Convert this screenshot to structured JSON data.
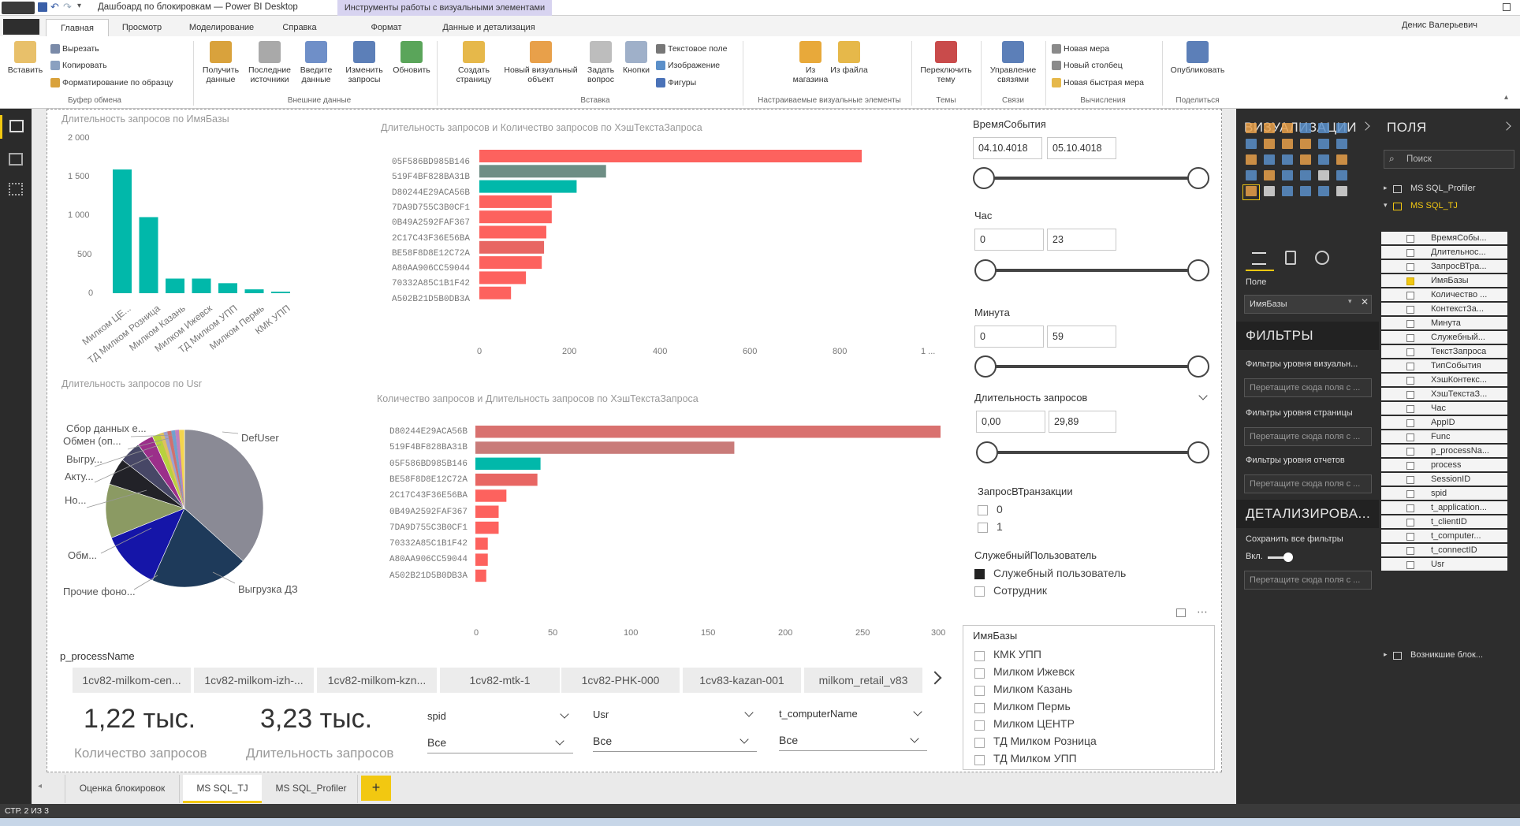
{
  "window": {
    "title": "Дашбоард по блокировкам — Power BI Desktop",
    "context_tab": "Инструменты работы с визуальными элементами",
    "user": "Денис Валерьевич"
  },
  "ribbon_tabs": [
    "Главная",
    "Просмотр",
    "Моделирование",
    "Справка",
    "Формат",
    "Данные и детализация"
  ],
  "ribbon": {
    "paste": "Вставить",
    "cut": "Вырезать",
    "copy": "Копировать",
    "format_painter": "Форматирование по образцу",
    "clipboard_group": "Буфер обмена",
    "get_data": "Получить данные",
    "recent_sources": "Последние источники",
    "enter_data": "Введите данные",
    "edit_queries": "Изменить запросы",
    "refresh": "Обновить",
    "external_group": "Внешние данные",
    "new_page": "Создать страницу",
    "new_visual": "Новый визуальный объект",
    "ask_question": "Задать вопрос",
    "buttons": "Кнопки",
    "text_box": "Текстовое поле",
    "image": "Изображение",
    "shapes": "Фигуры",
    "insert_group": "Вставка",
    "from_store": "Из магазина",
    "from_file": "Из файла",
    "custom_visuals_group": "Настраиваемые визуальные элементы",
    "switch_theme": "Переключить тему",
    "themes_group": "Темы",
    "manage_relationships": "Управление связями",
    "relationships_group": "Связи",
    "new_measure": "Новая мера",
    "new_column": "Новый столбец",
    "new_quick_measure": "Новая быстрая мера",
    "calculations_group": "Вычисления",
    "publish": "Опубликовать",
    "share_group": "Поделиться"
  },
  "chart1": {
    "title": "Длительность запросов по ИмяБазы",
    "yticks": [
      "2 000",
      "1 500",
      "1 000",
      "500",
      "0"
    ],
    "categories": [
      "Милком ЦЕ...",
      "ТД Милком Розница",
      "Милком Казань",
      "Милком Ижевск",
      "ТД Милком УПП",
      "Милком Пермь",
      "КМК УПП"
    ]
  },
  "chart2": {
    "title": "Длительность запросов и Количество запросов по ХэшТекстаЗапроса",
    "categories": [
      "05F586BD985B146",
      "519F4BF828BA31B",
      "D80244E29ACA56B",
      "7DA9D755C3B0CF1",
      "0B49A2592FAF367",
      "2C17C43F36E56BA",
      "BE58F8D8E12C72A",
      "A80AA906CC59044",
      "70332A85C1B1F42",
      "A502B21D5B0DB3A"
    ],
    "xticks": [
      "0",
      "200",
      "400",
      "600",
      "800",
      "1 ..."
    ]
  },
  "chart3": {
    "title": "Количество запросов и Длительность запросов по ХэшТекстаЗапроса",
    "categories": [
      "D80244E29ACA56B",
      "519F4BF828BA31B",
      "05F586BD985B146",
      "BE58F8D8E12C72A",
      "2C17C43F36E56BA",
      "0B49A2592FAF367",
      "7DA9D755C3B0CF1",
      "70332A85C1B1F42",
      "A80AA906CC59044",
      "A502B21D5B0DB3A"
    ],
    "xticks": [
      "0",
      "50",
      "100",
      "150",
      "200",
      "250",
      "300"
    ]
  },
  "chart4": {
    "title": "Длительность запросов по Usr",
    "labels": [
      "Сбор данных е...",
      "Обмен (оп...",
      "Выгру...",
      "Акту...",
      "Но...",
      "Обм...",
      "Прочие фоно...",
      "Выгрузка ДЗ",
      "DefUser"
    ]
  },
  "chart_data": [
    {
      "type": "bar",
      "title": "Длительность запросов по ИмяБазы",
      "categories": [
        "Милком ЦЕ...",
        "ТД Милком Розница",
        "Милком Казань",
        "Милком Ижевск",
        "ТД Милком УПП",
        "Милком Пермь",
        "КМК УПП"
      ],
      "values": [
        1610,
        990,
        190,
        190,
        130,
        50,
        20
      ],
      "ylim": [
        0,
        2000
      ],
      "color": "#01b8aa"
    },
    {
      "type": "bar",
      "orientation": "horizontal",
      "title": "Длительность запросов и Количество запросов по ХэшТекстаЗапроса",
      "categories": [
        "05F586BD985B146",
        "519F4BF828BA31B",
        "D80244E29ACA56B",
        "7DA9D755C3B0CF1",
        "0B49A2592FAF367",
        "2C17C43F36E56BA",
        "BE58F8D8E12C72A",
        "A80AA906CC59044",
        "70332A85C1B1F42",
        "A502B21D5B0DB3A"
      ],
      "values": [
        845,
        280,
        215,
        160,
        160,
        148,
        143,
        138,
        103,
        70
      ],
      "colors": [
        "#fd625e",
        "#6e8e85",
        "#01b8aa",
        "#fd625e",
        "#fd625e",
        "#fd625e",
        "#e86663",
        "#fd625e",
        "#fd625e",
        "#fd625e"
      ],
      "xlim": [
        0,
        1000
      ]
    },
    {
      "type": "bar",
      "orientation": "horizontal",
      "title": "Количество запросов и Длительность запросов по ХэшТекстаЗапроса",
      "categories": [
        "D80244E29ACA56B",
        "519F4BF828BA31B",
        "05F586BD985B146",
        "BE58F8D8E12C72A",
        "2C17C43F36E56BA",
        "0B49A2592FAF367",
        "7DA9D755C3B0CF1",
        "70332A85C1B1F42",
        "A80AA906CC59044",
        "A502B21D5B0DB3A"
      ],
      "values": [
        300,
        167,
        42,
        40,
        20,
        15,
        15,
        8,
        8,
        7
      ],
      "colors": [
        "#d9716f",
        "#c97b79",
        "#01b8aa",
        "#e86663",
        "#fd625e",
        "#fd625e",
        "#fd625e",
        "#fd625e",
        "#fd625e",
        "#fd625e"
      ],
      "xlim": [
        0,
        300
      ]
    },
    {
      "type": "pie",
      "title": "Длительность запросов по Usr",
      "labels": [
        "DefUser",
        "Выгрузка ДЗ",
        "Прочие фоно...",
        "Обм...",
        "Но...",
        "Акту...",
        "Выгру...",
        "Обмен (оп...",
        "Сбор данных е..."
      ],
      "values": [
        33,
        18,
        11,
        10,
        5,
        4,
        3,
        3,
        3
      ],
      "colors": [
        "#8a8a95",
        "#1e3a5a",
        "#1515a8",
        "#8b9a63",
        "#222228",
        "#474766",
        "#9b2f8a",
        "#b8d13e",
        "#f4d44d"
      ]
    }
  ],
  "slicers": {
    "event_time": {
      "label": "ВремяСобытия",
      "from": "04.10.4018",
      "to": "05.10.4018"
    },
    "hour": {
      "label": "Час",
      "from": "0",
      "to": "23"
    },
    "minute": {
      "label": "Минута",
      "from": "0",
      "to": "59"
    },
    "duration": {
      "label": "Длительность запросов",
      "from": "0,00",
      "to": "29,89"
    },
    "in_transaction": {
      "label": "ЗапросВТранзакции",
      "items": [
        "0",
        "1"
      ]
    },
    "service_user": {
      "label": "СлужебныйПользователь",
      "items": [
        "Служебный пользователь",
        "Сотрудник"
      ]
    },
    "db_name": {
      "label": "ИмяБазы",
      "items": [
        "КМК УПП",
        "Милком Ижевск",
        "Милком Казань",
        "Милком Пермь",
        "Милком ЦЕНТР",
        "ТД Милком Розница",
        "ТД Милком УПП"
      ]
    }
  },
  "process_slicer": {
    "label": "p_processName",
    "items": [
      "1cv82-milkom-cen...",
      "1cv82-milkom-izh-...",
      "1cv82-milkom-kzn...",
      "1cv82-mtk-1",
      "1cv82-PHK-000",
      "1cv83-kazan-001",
      "milkom_retail_v83"
    ]
  },
  "cards": {
    "count": {
      "value": "1,22 тыс.",
      "label": "Количество запросов"
    },
    "duration": {
      "value": "3,23 тыс.",
      "label": "Длительность запросов"
    }
  },
  "dropdowns": {
    "spid": {
      "label": "spid",
      "value": "Все"
    },
    "usr": {
      "label": "Usr",
      "value": "Все"
    },
    "computer": {
      "label": "t_computerName",
      "value": "Все"
    }
  },
  "page_tabs": [
    "Оценка блокировок",
    "MS SQL_TJ",
    "MS SQL_Profiler"
  ],
  "add_tab": "+",
  "status": "СТР. 2 ИЗ 3",
  "vis_pane": {
    "title": "ВИЗУАЛИЗАЦИИ",
    "field_label": "Поле",
    "field_value": "ИмяБазы",
    "filters_title": "ФИЛЬТРЫ",
    "visual_filters": "Фильтры уровня визуальн...",
    "page_filters": "Фильтры уровня страницы",
    "report_filters": "Фильтры уровня отчетов",
    "drop_hint": "Перетащите сюда поля с ...",
    "drill_title": "ДЕТАЛИЗИРОВА...",
    "keep_filters": "Сохранить все фильтры",
    "toggle": "Вкл."
  },
  "fields_pane": {
    "title": "ПОЛЯ",
    "search": "Поиск",
    "tables": [
      "MS SQL_Profiler",
      "MS SQL_TJ",
      "Возникшие блок..."
    ],
    "fields": [
      "ВремяСобы...",
      "Длительнос...",
      "ЗапросВТра...",
      "ИмяБазы",
      "Количество ...",
      "КонтекстЗа...",
      "Минута",
      "Служебный...",
      "ТекстЗапроса",
      "ТипСобытия",
      "ХэшКонтекс...",
      "ХэшТекстаЗ...",
      "Час",
      "AppID",
      "Func",
      "p_processNa...",
      "process",
      "SessionID",
      "spid",
      "t_application...",
      "t_clientID",
      "t_computer...",
      "t_connectID",
      "Usr"
    ],
    "checked_field": "ИмяБазы"
  }
}
